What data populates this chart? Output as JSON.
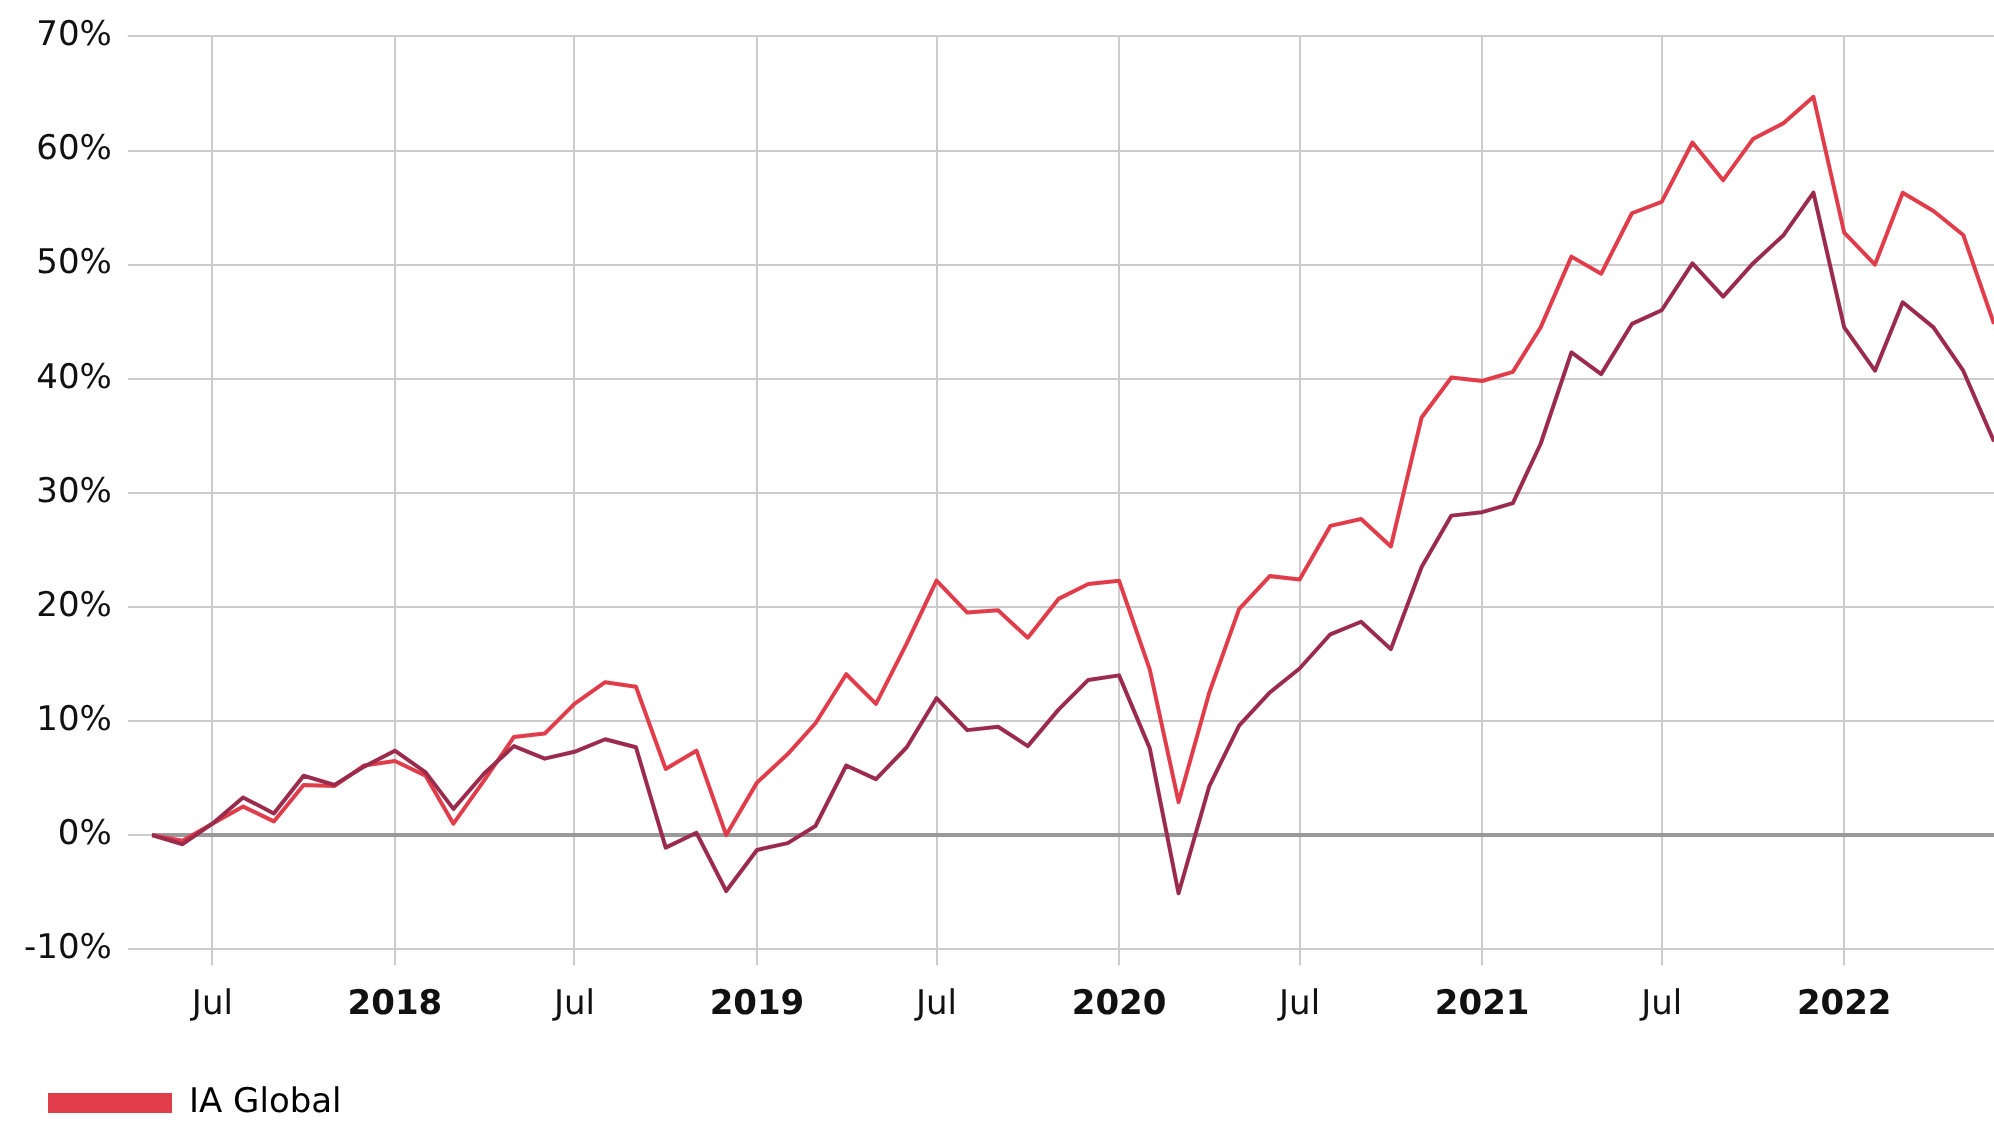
{
  "chart_data": {
    "type": "line",
    "x": [
      "2017-05",
      "2017-06",
      "2017-07",
      "2017-08",
      "2017-09",
      "2017-10",
      "2017-11",
      "2017-12",
      "2018-01",
      "2018-02",
      "2018-03",
      "2018-04",
      "2018-05",
      "2018-06",
      "2018-07",
      "2018-08",
      "2018-09",
      "2018-10",
      "2018-11",
      "2018-12",
      "2019-01",
      "2019-02",
      "2019-03",
      "2019-04",
      "2019-05",
      "2019-06",
      "2019-07",
      "2019-08",
      "2019-09",
      "2019-10",
      "2019-11",
      "2019-12",
      "2020-01",
      "2020-02",
      "2020-03",
      "2020-04",
      "2020-05",
      "2020-06",
      "2020-07",
      "2020-08",
      "2020-09",
      "2020-10",
      "2020-11",
      "2020-12",
      "2021-01",
      "2021-02",
      "2021-03",
      "2021-04",
      "2021-05",
      "2021-06",
      "2021-07",
      "2021-08",
      "2021-09",
      "2021-10",
      "2021-11",
      "2021-12",
      "2022-01",
      "2022-02",
      "2022-03",
      "2022-04",
      "2022-05",
      "2022-06"
    ],
    "series": [
      {
        "color": "#9b2b4c",
        "values": [
          0,
          -0.8,
          1.0,
          3.3,
          1.9,
          5.2,
          4.4,
          6.0,
          7.4,
          5.5,
          2.3,
          5.4,
          7.8,
          6.7,
          7.3,
          8.4,
          7.7,
          -1.1,
          0.2,
          -4.9,
          -1.3,
          -0.7,
          0.8,
          6.1,
          4.9,
          7.7,
          12.0,
          9.2,
          9.5,
          7.8,
          11.0,
          13.6,
          14.0,
          7.6,
          -5.1,
          4.3,
          9.6,
          12.5,
          14.6,
          17.6,
          18.7,
          16.3,
          23.5,
          28.0,
          28.3,
          29.1,
          34.3,
          42.3,
          40.4,
          44.8,
          46.0,
          50.1,
          47.2,
          50.1,
          52.6,
          56.3,
          44.5,
          40.7,
          46.7,
          44.5,
          40.7,
          34.5
        ]
      },
      {
        "name": "IA Global",
        "color": "#e03c4a",
        "values": [
          0,
          -0.5,
          1.0,
          2.5,
          1.2,
          4.4,
          4.3,
          6.1,
          6.5,
          5.2,
          1.0,
          4.8,
          8.6,
          8.9,
          11.5,
          13.4,
          13.0,
          5.8,
          7.4,
          0.0,
          4.6,
          7.1,
          9.8,
          14.1,
          11.5,
          16.8,
          22.3,
          19.5,
          19.7,
          17.3,
          20.7,
          22.0,
          22.3,
          14.5,
          2.9,
          12.5,
          19.8,
          22.7,
          22.4,
          27.1,
          27.7,
          25.3,
          36.6,
          40.1,
          39.8,
          40.6,
          44.5,
          50.7,
          49.2,
          54.5,
          55.5,
          60.7,
          57.4,
          61.0,
          62.4,
          64.7,
          52.8,
          50.0,
          56.3,
          54.7,
          52.6,
          44.8
        ]
      }
    ],
    "xlim": [
      "2017-05",
      "2022-06"
    ],
    "xticks": [
      {
        "value": "2017-07",
        "label": "Jul"
      },
      {
        "value": "2018-01",
        "label": "2018"
      },
      {
        "value": "2018-07",
        "label": "Jul"
      },
      {
        "value": "2019-01",
        "label": "2019"
      },
      {
        "value": "2019-07",
        "label": "Jul"
      },
      {
        "value": "2020-01",
        "label": "2020"
      },
      {
        "value": "2020-07",
        "label": "Jul"
      },
      {
        "value": "2021-01",
        "label": "2021"
      },
      {
        "value": "2021-07",
        "label": "Jul"
      },
      {
        "value": "2022-01",
        "label": "2022"
      }
    ],
    "ylim": [
      -10,
      70
    ],
    "yticks": [
      {
        "value": -10,
        "label": "-10%"
      },
      {
        "value": 0,
        "label": "0%"
      },
      {
        "value": 10,
        "label": "10%"
      },
      {
        "value": 20,
        "label": "20%"
      },
      {
        "value": 30,
        "label": "30%"
      },
      {
        "value": 40,
        "label": "40%"
      },
      {
        "value": 50,
        "label": "50%"
      },
      {
        "value": 60,
        "label": "60%"
      },
      {
        "value": 70,
        "label": "70%"
      }
    ],
    "ref_lines": [
      {
        "axis": "y",
        "value": 0,
        "color": "#999999"
      }
    ],
    "grid": true,
    "legend": "bottom",
    "marker": "none",
    "line_style": "solid"
  }
}
